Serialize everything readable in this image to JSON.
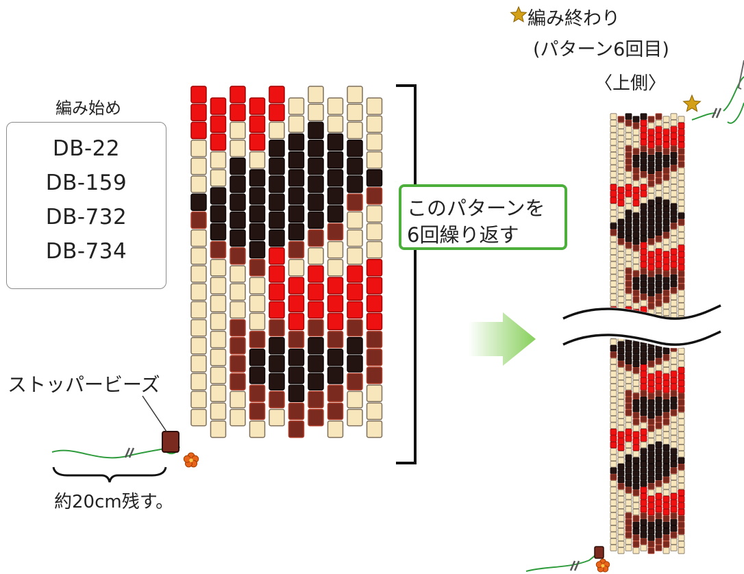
{
  "labels": {
    "start": "編み始め",
    "end_title": "編み終わり",
    "end_sub": "(パターン6回目)",
    "top_side": "〈上側〉",
    "stopper": "ストッパービーズ",
    "leave_thread": "約20cm残す。"
  },
  "legend": {
    "codes": [
      "DB-22",
      "DB-159",
      "DB-732",
      "DB-734"
    ]
  },
  "callout": {
    "line1": "このパターンを",
    "line2": "6回繰り返す"
  },
  "colors": {
    "red": "#ee1111",
    "black": "#231311",
    "brown": "#7a2a1e",
    "cream": "#f8e6bd",
    "green_accent": "#4caf3c",
    "star": "#d4a017",
    "flower": "#e8641a"
  },
  "pattern": {
    "repeats": 6,
    "columns": 10,
    "rows": 19,
    "legend": {
      "R": "DB-22",
      "K": "DB-159",
      "B": "DB-732",
      "C": "DB-734"
    },
    "grid": [
      "RRRRRCCCCC",
      "RRRRRCCCCC",
      "RRCRCKKKCC",
      "CCCCKKKKKC",
      "CCKKKKKKKK",
      "CKKKKKKKKB",
      "KKKKKKKKBC",
      "BKKKKKKBCC",
      "CBKKKBBCCC",
      "CCBBRCCCCR",
      "CCCCRRRRRR",
      "CCCCRRRRRR",
      "CCCCRRRRRR",
      "CCBBBBBBBB",
      "CCBKKKKKKB",
      "CCBKKKKKKB",
      "CCBBKKKBBC",
      "CCCBBBBBCC",
      "CCCCCBBCCC"
    ]
  }
}
